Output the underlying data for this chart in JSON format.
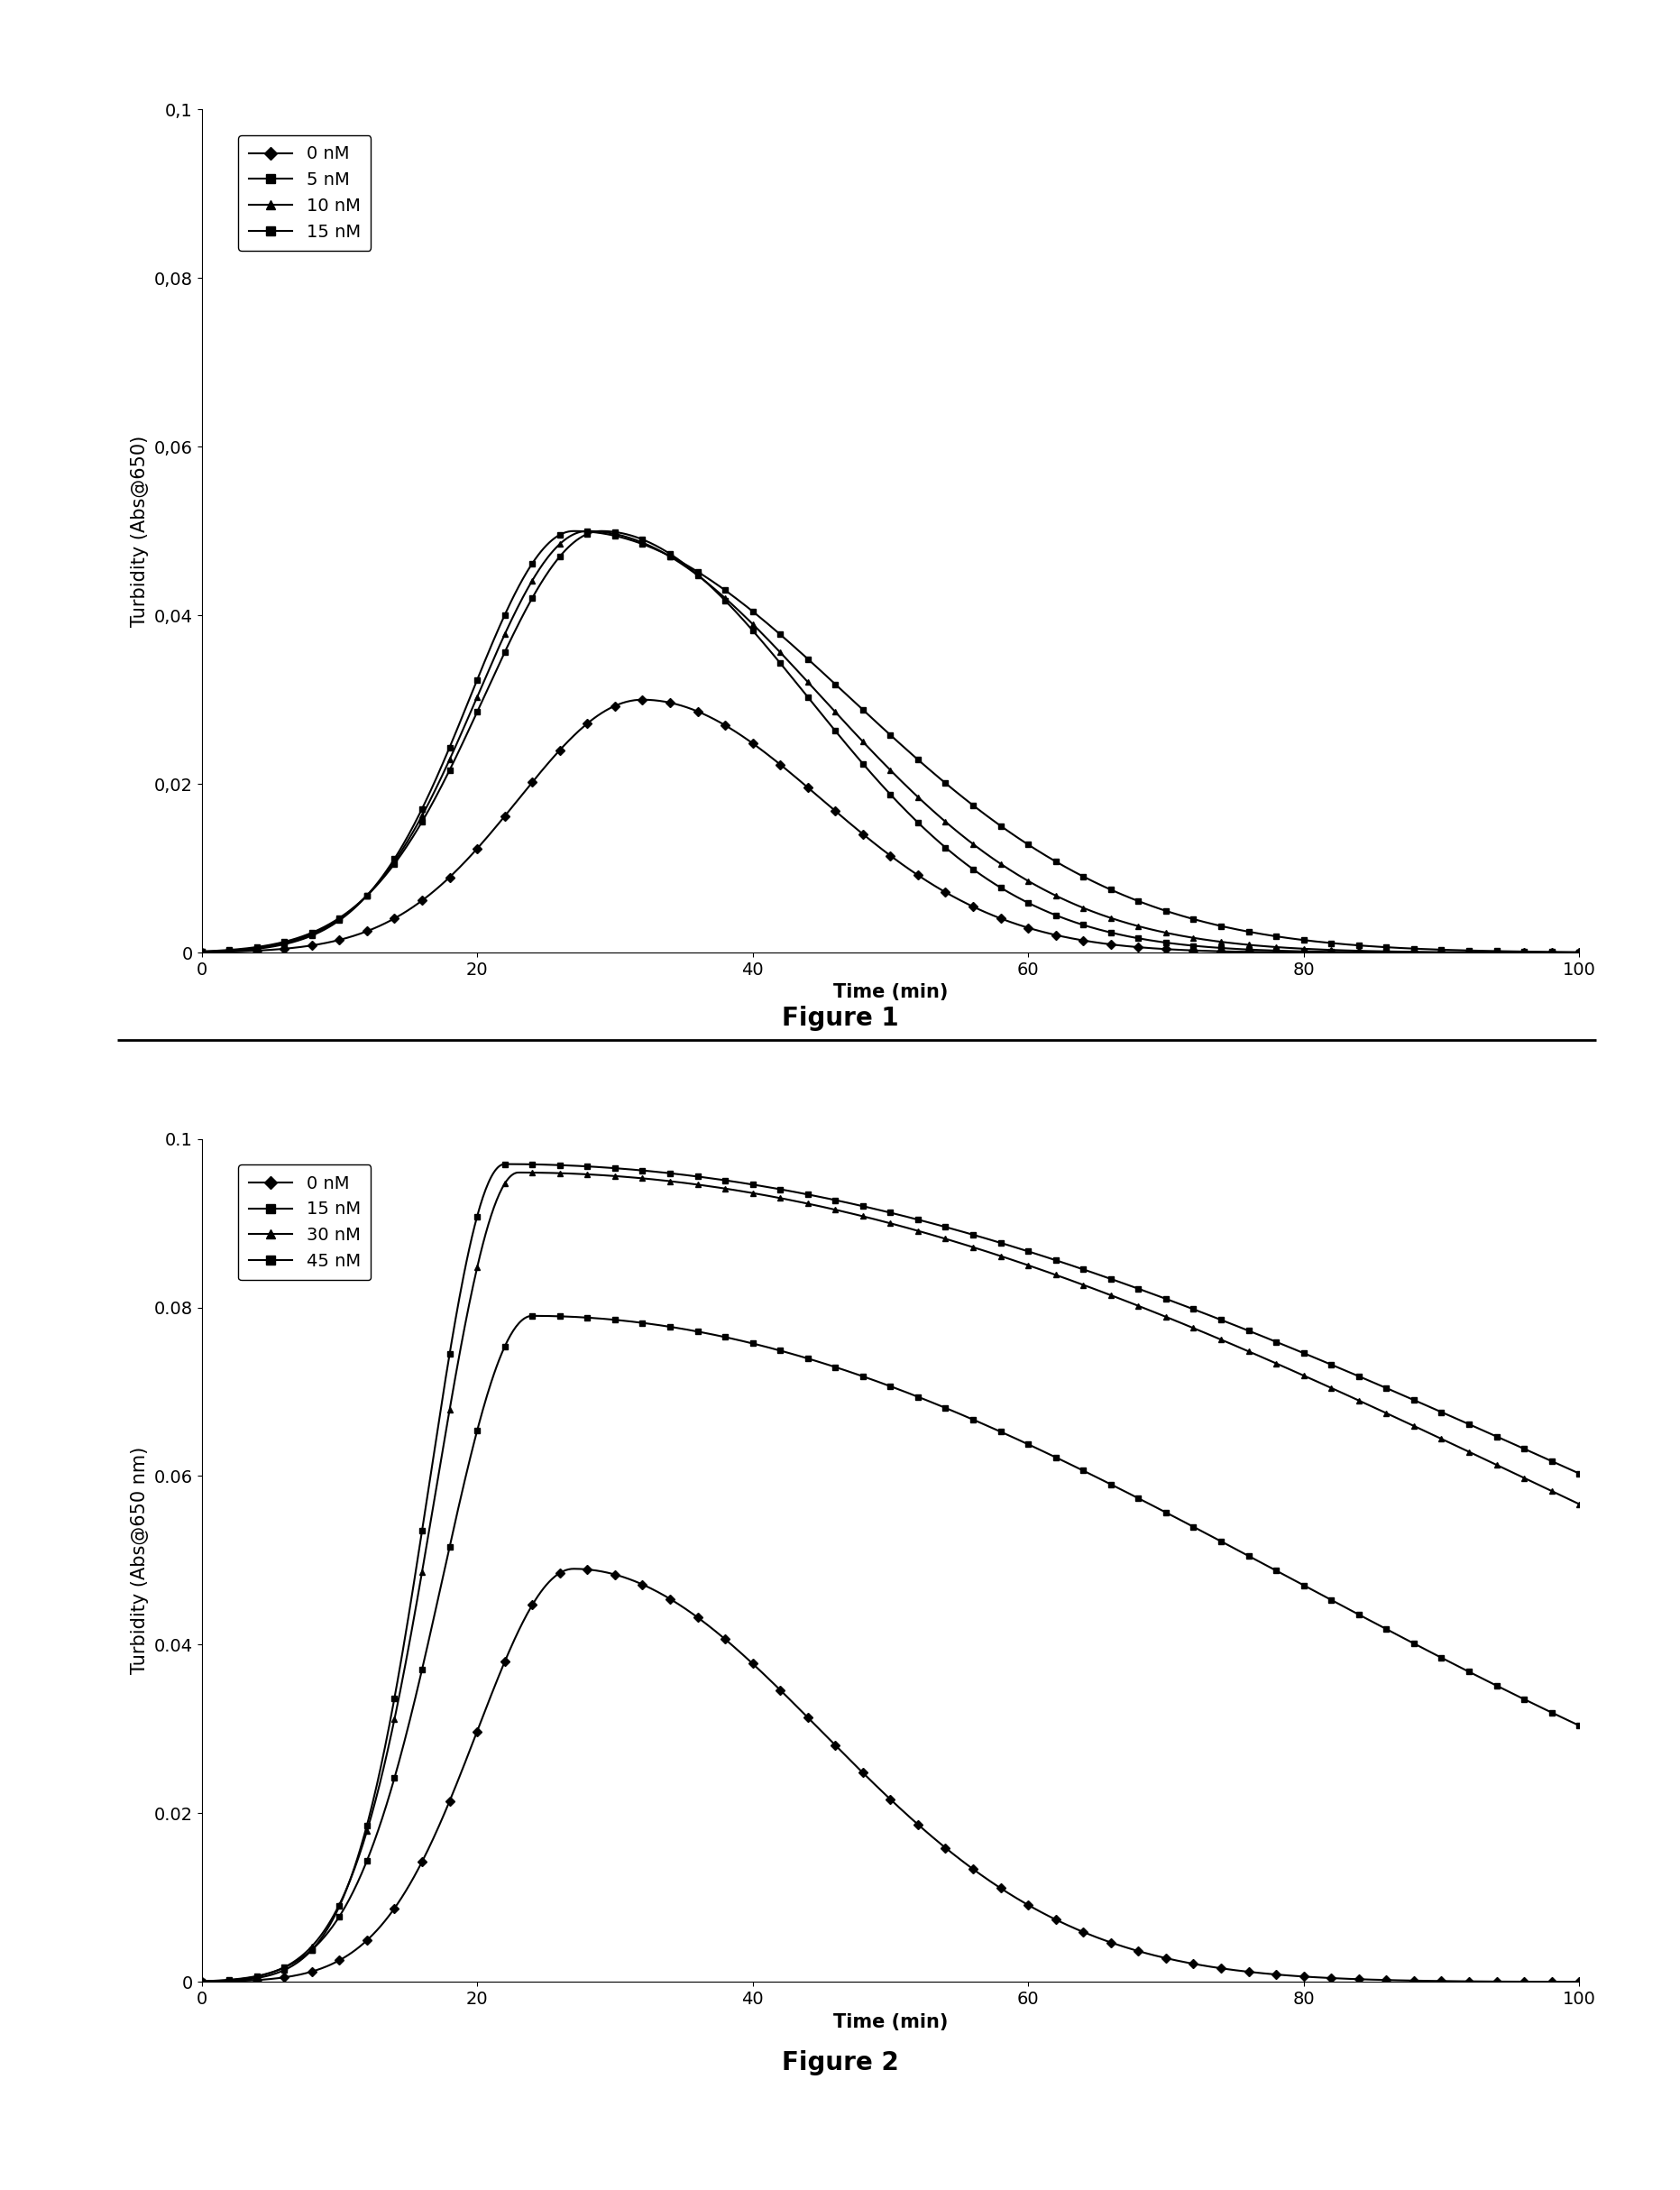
{
  "fig1": {
    "ylabel": "Turbidity (Abs@650)",
    "xlabel": "Time (min)",
    "xlim": [
      0,
      100
    ],
    "ylim": [
      0,
      0.1
    ],
    "yticks": [
      0,
      0.02,
      0.04,
      0.06,
      0.08,
      0.1
    ],
    "ytick_labels": [
      "0",
      "0,02",
      "0,04",
      "0,06",
      "0,08",
      "0,1"
    ],
    "xticks": [
      0,
      20,
      40,
      60,
      80,
      100
    ],
    "legend_labels": [
      "0 nM",
      "5 nM",
      "10 nM",
      "15 nM"
    ],
    "markers": [
      "D",
      "s",
      "^",
      "s"
    ],
    "curves": [
      {
        "peak": 0.03,
        "peak_time": 32,
        "sigma_rise": 9.0,
        "sigma_fall": 13.0
      },
      {
        "peak": 0.05,
        "peak_time": 29,
        "sigma_rise": 8.5,
        "sigma_fall": 15.0
      },
      {
        "peak": 0.05,
        "peak_time": 28,
        "sigma_rise": 8.0,
        "sigma_fall": 17.0
      },
      {
        "peak": 0.05,
        "peak_time": 27,
        "sigma_rise": 7.5,
        "sigma_fall": 20.0
      }
    ],
    "marker_interval": 2
  },
  "fig2": {
    "ylabel": "Turbidity (Abs@650 nm)",
    "xlabel": "Time (min)",
    "xlim": [
      0,
      100
    ],
    "ylim": [
      0,
      0.1
    ],
    "yticks": [
      0,
      0.02,
      0.04,
      0.06,
      0.08,
      0.1
    ],
    "ytick_labels": [
      "0",
      "0.02",
      "0.04",
      "0.06",
      "0.08",
      "0.1"
    ],
    "xticks": [
      0,
      20,
      40,
      60,
      80,
      100
    ],
    "legend_labels": [
      "0 nM",
      "15 nM",
      "30 nM",
      "45 nM"
    ],
    "markers": [
      "D",
      "s",
      "^",
      "s"
    ],
    "curves": [
      {
        "peak": 0.049,
        "peak_time": 27,
        "sigma_rise": 7.0,
        "sigma_fall": 18.0
      },
      {
        "peak": 0.079,
        "peak_time": 24,
        "sigma_rise": 6.5,
        "sigma_fall": 55.0
      },
      {
        "peak": 0.096,
        "peak_time": 23,
        "sigma_rise": 6.0,
        "sigma_fall": 75.0
      },
      {
        "peak": 0.097,
        "peak_time": 22,
        "sigma_rise": 5.5,
        "sigma_fall": 80.0
      }
    ],
    "marker_interval": 2
  },
  "fig1_caption": "Figure 1",
  "fig2_caption": "Figure 2",
  "line_color": "#000000",
  "bg_color": "#ffffff",
  "caption_fontsize": 20,
  "label_fontsize": 15,
  "tick_fontsize": 14,
  "legend_fontsize": 14,
  "marker_size": 5,
  "linewidth": 1.5
}
